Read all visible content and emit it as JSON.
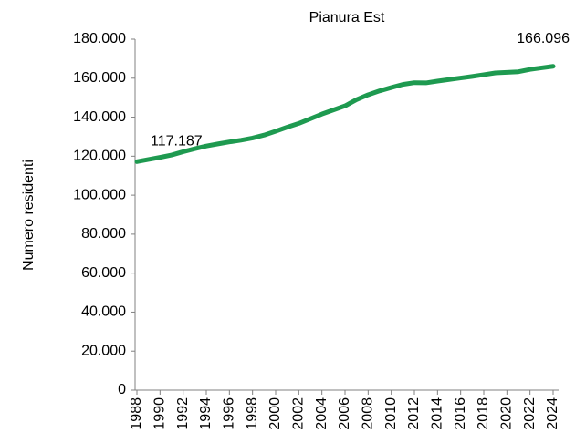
{
  "chart_data": {
    "type": "line",
    "title": "Pianura Est",
    "ylabel": "Numero  residenti",
    "x": [
      1988,
      1989,
      1990,
      1991,
      1992,
      1993,
      1994,
      1995,
      1996,
      1997,
      1998,
      1999,
      2000,
      2001,
      2002,
      2003,
      2004,
      2005,
      2006,
      2007,
      2008,
      2009,
      2010,
      2011,
      2012,
      2013,
      2014,
      2015,
      2016,
      2017,
      2018,
      2019,
      2020,
      2021,
      2022,
      2023,
      2024
    ],
    "series": [
      {
        "name": "Pianura Est",
        "color": "#1e9a50",
        "values": [
          117187,
          118300,
          119400,
          120600,
          122300,
          123800,
          125200,
          126300,
          127300,
          128200,
          129300,
          130800,
          132800,
          134900,
          136800,
          139200,
          141600,
          143700,
          145800,
          149000,
          151500,
          153500,
          155200,
          156800,
          157700,
          157600,
          158500,
          159300,
          160100,
          160900,
          161800,
          162700,
          163000,
          163300,
          164500,
          165300,
          166096
        ],
        "value_labels": [
          "117.187",
          null,
          null,
          null,
          null,
          null,
          null,
          null,
          null,
          null,
          null,
          null,
          null,
          null,
          null,
          null,
          null,
          null,
          null,
          null,
          null,
          null,
          null,
          null,
          null,
          null,
          null,
          null,
          null,
          null,
          null,
          null,
          null,
          null,
          null,
          null,
          "166.096"
        ]
      }
    ],
    "xlim": [
      1988,
      2024
    ],
    "xticks": [
      1988,
      1990,
      1992,
      1994,
      1996,
      1998,
      2000,
      2002,
      2004,
      2006,
      2008,
      2010,
      2012,
      2014,
      2016,
      2018,
      2020,
      2022,
      2024
    ],
    "ylim": [
      0,
      180000
    ],
    "yticks": [
      0,
      {
        "value": 20000,
        "label": "20.000"
      },
      {
        "value": 40000,
        "label": "40.000"
      },
      {
        "value": 60000,
        "label": "60.000"
      },
      {
        "value": 80000,
        "label": "80.000"
      },
      {
        "value": 100000,
        "label": "100.000"
      },
      {
        "value": 120000,
        "label": "120.000"
      },
      {
        "value": 140000,
        "label": "140.000"
      },
      {
        "value": 160000,
        "label": "160.000"
      },
      {
        "value": 180000,
        "label": "180.000"
      }
    ],
    "grid": false
  }
}
